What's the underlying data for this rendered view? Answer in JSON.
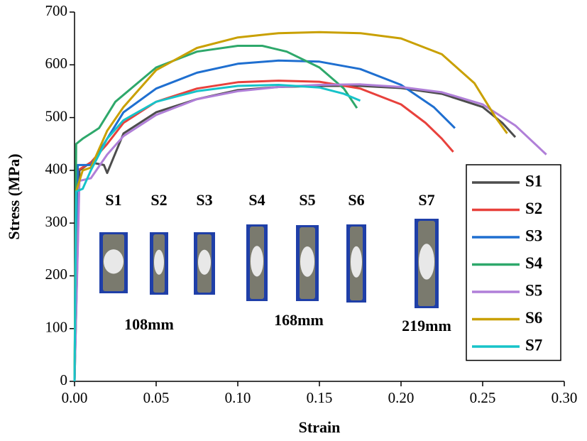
{
  "chart_data": {
    "type": "line",
    "x_label": "Strain",
    "y_label": "Stress (MPa)",
    "xlim": [
      0,
      0.3
    ],
    "ylim": [
      0,
      700
    ],
    "xticks": [
      {
        "value": 0,
        "label": "0.00"
      },
      {
        "value": 0.05,
        "label": "0.05"
      },
      {
        "value": 0.1,
        "label": "0.10"
      },
      {
        "value": 0.15,
        "label": "0.15"
      },
      {
        "value": 0.2,
        "label": "0.20"
      },
      {
        "value": 0.25,
        "label": "0.25"
      },
      {
        "value": 0.3,
        "label": "0.30"
      }
    ],
    "yticks": [
      0,
      100,
      200,
      300,
      400,
      500,
      600,
      700
    ],
    "legend_position": "lower right",
    "specimen_labels": [
      "S1",
      "S2",
      "S3",
      "S4",
      "S5",
      "S6",
      "S7"
    ],
    "length_labels": [
      "108mm",
      "168mm",
      "219mm"
    ],
    "series": [
      {
        "name": "S1",
        "color": "#4d4d4d",
        "x": [
          0,
          0.003,
          0.01,
          0.018,
          0.02,
          0.03,
          0.05,
          0.075,
          0.1,
          0.125,
          0.15,
          0.175,
          0.2,
          0.225,
          0.25,
          0.262,
          0.27
        ],
        "values": [
          0,
          400,
          415,
          410,
          395,
          470,
          510,
          535,
          552,
          558,
          560,
          560,
          556,
          545,
          520,
          490,
          463
        ]
      },
      {
        "name": "S2",
        "color": "#e8413c",
        "x": [
          0,
          0.002,
          0.01,
          0.02,
          0.03,
          0.05,
          0.075,
          0.1,
          0.125,
          0.15,
          0.175,
          0.2,
          0.215,
          0.225,
          0.232
        ],
        "values": [
          0,
          400,
          415,
          450,
          490,
          530,
          555,
          567,
          570,
          568,
          555,
          525,
          490,
          460,
          435
        ]
      },
      {
        "name": "S3",
        "color": "#1f6fd0",
        "x": [
          0,
          0.002,
          0.01,
          0.02,
          0.03,
          0.05,
          0.075,
          0.1,
          0.125,
          0.15,
          0.175,
          0.2,
          0.22,
          0.233
        ],
        "values": [
          0,
          410,
          410,
          460,
          510,
          555,
          585,
          602,
          608,
          606,
          592,
          562,
          520,
          480
        ]
      },
      {
        "name": "S4",
        "color": "#2ea86b",
        "x": [
          0,
          0.001,
          0.005,
          0.01,
          0.015,
          0.025,
          0.05,
          0.075,
          0.1,
          0.115,
          0.13,
          0.15,
          0.165,
          0.173
        ],
        "values": [
          0,
          450,
          460,
          470,
          480,
          530,
          595,
          625,
          636,
          636,
          625,
          595,
          555,
          518
        ]
      },
      {
        "name": "S5",
        "color": "#b07fd8",
        "x": [
          0,
          0.003,
          0.01,
          0.02,
          0.03,
          0.05,
          0.075,
          0.1,
          0.125,
          0.15,
          0.175,
          0.2,
          0.225,
          0.25,
          0.27,
          0.289
        ],
        "values": [
          0,
          380,
          385,
          430,
          465,
          505,
          535,
          550,
          558,
          562,
          563,
          558,
          548,
          525,
          485,
          430
        ]
      },
      {
        "name": "S6",
        "color": "#c9a000",
        "x": [
          0,
          0.001,
          0.005,
          0.01,
          0.02,
          0.03,
          0.05,
          0.075,
          0.1,
          0.125,
          0.15,
          0.175,
          0.2,
          0.225,
          0.245,
          0.258,
          0.265
        ],
        "values": [
          0,
          360,
          400,
          405,
          475,
          520,
          590,
          632,
          652,
          660,
          662,
          660,
          650,
          620,
          565,
          500,
          470
        ]
      },
      {
        "name": "S7",
        "color": "#17c3c9",
        "x": [
          0,
          0.001,
          0.005,
          0.01,
          0.02,
          0.03,
          0.05,
          0.075,
          0.1,
          0.125,
          0.15,
          0.165,
          0.175
        ],
        "values": [
          0,
          360,
          365,
          400,
          460,
          495,
          530,
          550,
          560,
          562,
          557,
          545,
          532
        ]
      }
    ]
  }
}
